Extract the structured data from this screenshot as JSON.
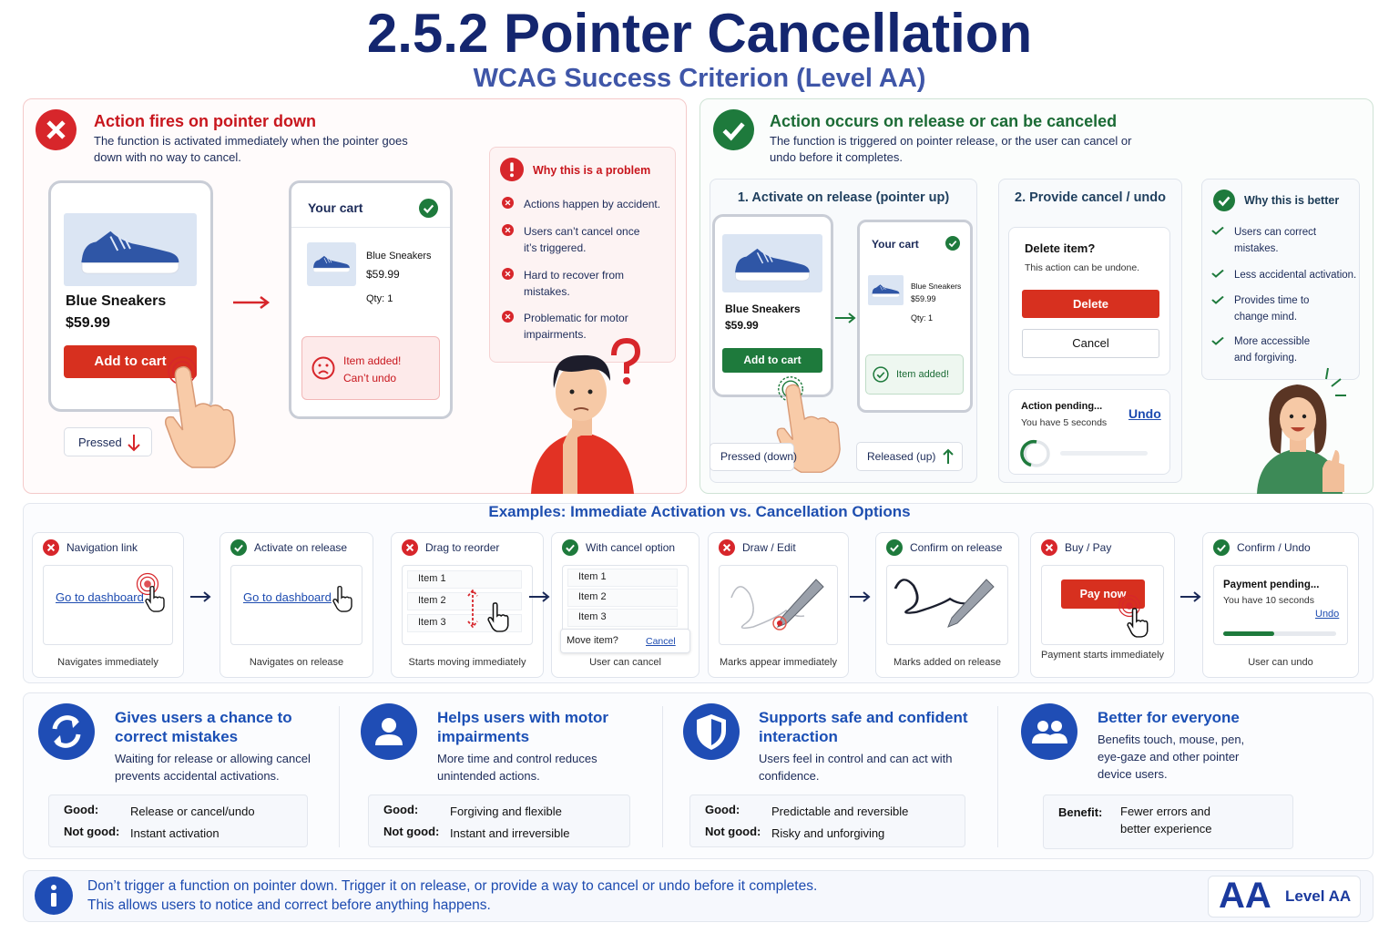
{
  "header": {
    "title": "2.5.2 Pointer Cancellation",
    "subtitle": "WCAG Success Criterion (Level AA)"
  },
  "bad": {
    "heading": "Action fires on pointer down",
    "description": "The function is activated immediately when the pointer goes down with no way to cancel.",
    "product": {
      "name": "Blue Sneakers",
      "price": "$59.99",
      "button": "Add to cart"
    },
    "state": "Pressed",
    "cart": {
      "title": "Your cart",
      "item": "Blue Sneakers",
      "price": "$59.99",
      "qty": "Qty: 1",
      "alert": [
        "Item added!",
        "Can’t undo"
      ]
    },
    "problem": {
      "title": "Why this is a problem",
      "items": [
        "Actions happen by accident.",
        "Users can’t cancel once it’s triggered.",
        "Hard to recover from mistakes.",
        "Problematic for motor impairments."
      ]
    }
  },
  "good": {
    "heading": "Action occurs on release or can be canceled",
    "description": "The function is triggered on pointer release, or the user can cancel or undo before it completes.",
    "release": {
      "title": "1. Activate on release (pointer up)",
      "product": {
        "name": "Blue Sneakers",
        "price": "$59.99",
        "button": "Add to cart"
      },
      "cart": {
        "title": "Your cart",
        "item": "Blue Sneakers",
        "price": "$59.99",
        "qty": "Qty: 1",
        "confirmation": "Item added!"
      },
      "pressed": "Pressed (down)",
      "released": "Released (up)"
    },
    "cancel": {
      "title": "2. Provide cancel / undo",
      "dialog": {
        "title": "Delete item?",
        "text": "This action can be undone.",
        "confirm": "Delete",
        "cancel": "Cancel"
      },
      "pending": {
        "title": "Action pending...",
        "text": "You have 5 seconds",
        "undo": "Undo"
      }
    },
    "benefits": {
      "title": "Why this is better",
      "items": [
        "Users can correct mistakes.",
        "Less accidental activation.",
        "Provides time to change mind.",
        "More accessible and forgiving."
      ]
    }
  },
  "examples": {
    "title": "Examples: Immediate Activation vs. Cancellation Options",
    "cards": [
      {
        "label": "Navigation link",
        "link": "Go to dashboard",
        "caption": "Navigates immediately"
      },
      {
        "label": "Activate on release",
        "link": "Go to dashboard",
        "caption": "Navigates on release"
      },
      {
        "label": "Drag to reorder",
        "items": [
          "Item 1",
          "Item 2",
          "Item 3"
        ],
        "caption": "Starts moving immediately"
      },
      {
        "label": "With cancel option",
        "items": [
          "Item 1",
          "Item 2",
          "Item 3"
        ],
        "prompt": "Move item?",
        "action": "Cancel",
        "caption": "User can cancel"
      },
      {
        "label": "Draw / Edit",
        "caption": "Marks appear immediately"
      },
      {
        "label": "Confirm on release",
        "caption": "Marks added on release"
      },
      {
        "label": "Buy / Pay",
        "button": "Pay now",
        "caption": "Payment starts immediately"
      },
      {
        "label": "Confirm / Undo",
        "status": "Payment pending...",
        "text": "You have 10 seconds",
        "action": "Undo",
        "caption": "User can undo"
      }
    ]
  },
  "principles": [
    {
      "title": "Gives users a chance to correct mistakes",
      "description": "Waiting for release or allowing cancel prevents accidental activations.",
      "rows": [
        {
          "label": "Good:",
          "text": "Release or cancel/undo"
        },
        {
          "label": "Not good:",
          "text": "Instant activation"
        }
      ]
    },
    {
      "title": "Helps users with motor impairments",
      "description": "More time and control reduces unintended actions.",
      "rows": [
        {
          "label": "Good:",
          "text": "Forgiving and flexible"
        },
        {
          "label": "Not good:",
          "text": "Instant and irreversible"
        }
      ]
    },
    {
      "title": "Supports safe and confident interaction",
      "description": "Users feel in control and can act with confidence.",
      "rows": [
        {
          "label": "Good:",
          "text": "Predictable and reversible"
        },
        {
          "label": "Not good:",
          "text": "Risky and unforgiving"
        }
      ]
    },
    {
      "title": "Better for everyone",
      "description": "Benefits touch, mouse, pen, eye-gaze and other pointer device users.",
      "rows": [
        {
          "label": "Benefit:",
          "text": "Fewer errors and better experience"
        }
      ]
    }
  ],
  "footer": {
    "text": [
      "Don’t trigger a function on pointer down. Trigger it on release, or provide a way to cancel or undo before it completes.",
      "This allows users to notice and correct before anything happens."
    ],
    "badge": "AA",
    "level": "Level AA"
  }
}
